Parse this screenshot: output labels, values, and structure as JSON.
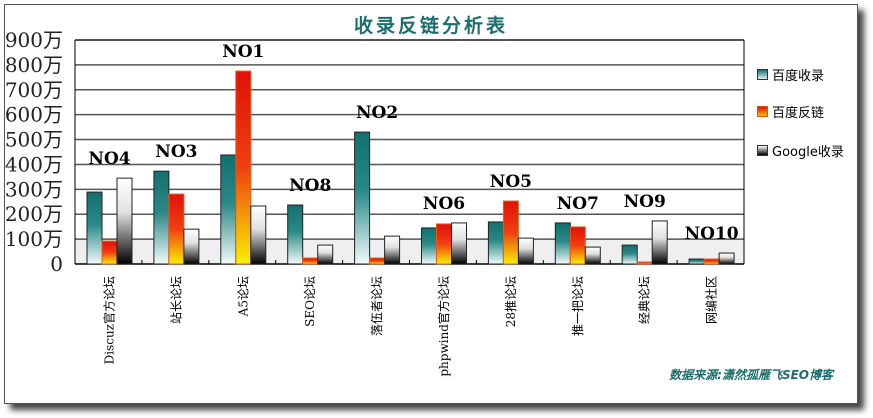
{
  "chart_data": {
    "type": "bar",
    "title": "收录反链分析表",
    "categories": [
      "Discuz官方论坛",
      "站长论坛",
      "A5论坛",
      "SEO论坛",
      "落伍者论坛",
      "phpwind官方论坛",
      "28推论坛",
      "推一把论坛",
      "经典论坛",
      "网编社区"
    ],
    "ranks": [
      "NO4",
      "NO3",
      "NO1",
      "NO8",
      "NO2",
      "NO6",
      "NO5",
      "NO7",
      "NO9",
      "NO10"
    ],
    "series": [
      {
        "name": "百度收录",
        "color": "#1a7a78",
        "values": [
          289,
          373,
          438,
          237,
          530,
          145,
          169,
          165,
          76,
          20
        ]
      },
      {
        "name": "百度反链",
        "color": "#e8200a",
        "values": [
          92,
          281,
          775,
          24,
          24,
          161,
          253,
          149,
          8,
          20
        ]
      },
      {
        "name": "Google收录",
        "color": "#666666",
        "values": [
          345,
          140,
          233,
          76,
          112,
          165,
          104,
          68,
          173,
          44
        ]
      }
    ],
    "yticks": [
      "0",
      "100万",
      "200万",
      "300万",
      "400万",
      "500万",
      "600万",
      "700万",
      "800万",
      "900万"
    ],
    "ylim": [
      0,
      900
    ],
    "grid": true,
    "legend": "right",
    "source": "数据来源:潇然孤雁飞SEO博客"
  }
}
